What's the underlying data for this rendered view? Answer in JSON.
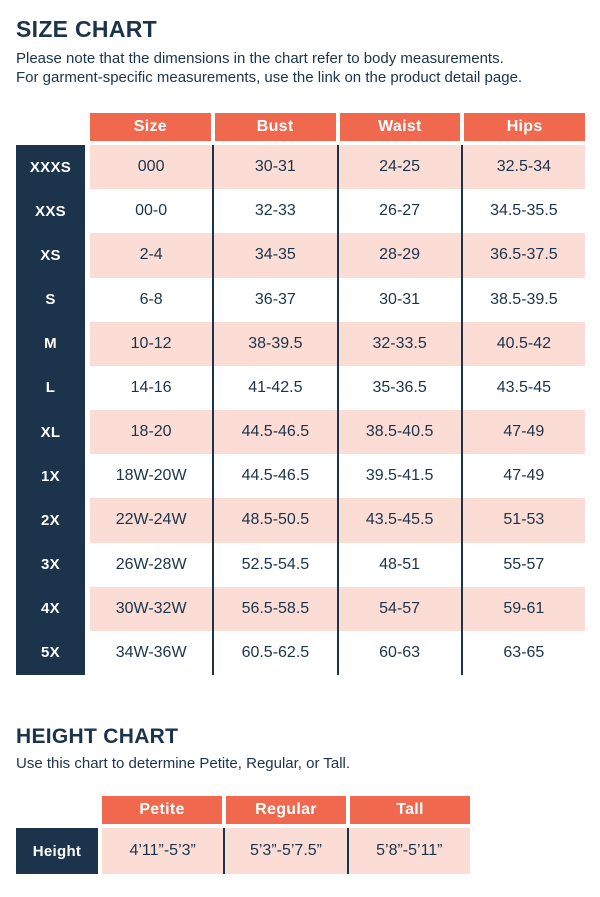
{
  "colors": {
    "navy": "#1b334b",
    "orange": "#f0694e",
    "pink": "#fbddd5",
    "background": "#ffffff"
  },
  "size_chart": {
    "title": "SIZE CHART",
    "note_line1": "Please note that the dimensions in the chart refer to body measurements.",
    "note_line2": "For garment-specific measurements, use the link on the product detail page.",
    "columns": [
      "Size",
      "Bust",
      "Waist",
      "Hips"
    ],
    "rows": [
      {
        "label": "XXXS",
        "size": "000",
        "bust": "30-31",
        "waist": "24-25",
        "hips": "32.5-34"
      },
      {
        "label": "XXS",
        "size": "00-0",
        "bust": "32-33",
        "waist": "26-27",
        "hips": "34.5-35.5"
      },
      {
        "label": "XS",
        "size": "2-4",
        "bust": "34-35",
        "waist": "28-29",
        "hips": "36.5-37.5"
      },
      {
        "label": "S",
        "size": "6-8",
        "bust": "36-37",
        "waist": "30-31",
        "hips": "38.5-39.5"
      },
      {
        "label": "M",
        "size": "10-12",
        "bust": "38-39.5",
        "waist": "32-33.5",
        "hips": "40.5-42"
      },
      {
        "label": "L",
        "size": "14-16",
        "bust": "41-42.5",
        "waist": "35-36.5",
        "hips": "43.5-45"
      },
      {
        "label": "XL",
        "size": "18-20",
        "bust": "44.5-46.5",
        "waist": "38.5-40.5",
        "hips": "47-49"
      },
      {
        "label": "1X",
        "size": "18W-20W",
        "bust": "44.5-46.5",
        "waist": "39.5-41.5",
        "hips": "47-49"
      },
      {
        "label": "2X",
        "size": "22W-24W",
        "bust": "48.5-50.5",
        "waist": "43.5-45.5",
        "hips": "51-53"
      },
      {
        "label": "3X",
        "size": "26W-28W",
        "bust": "52.5-54.5",
        "waist": "48-51",
        "hips": "55-57"
      },
      {
        "label": "4X",
        "size": "30W-32W",
        "bust": "56.5-58.5",
        "waist": "54-57",
        "hips": "59-61"
      },
      {
        "label": "5X",
        "size": "34W-36W",
        "bust": "60.5-62.5",
        "waist": "60-63",
        "hips": "63-65"
      }
    ]
  },
  "height_chart": {
    "title": "HEIGHT CHART",
    "note": "Use this chart to determine Petite, Regular, or Tall.",
    "columns": [
      "Petite",
      "Regular",
      "Tall"
    ],
    "row_label": "Height",
    "values": [
      "4’11”-5’3”",
      "5’3”-5’7.5”",
      "5’8”-5’11”"
    ]
  }
}
